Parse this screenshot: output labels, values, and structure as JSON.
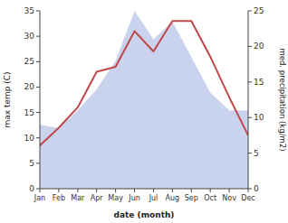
{
  "chart_data": {
    "type": "line",
    "xlabel": "date (month)",
    "ylabel": "max temp (C)",
    "y2label": "med. precipitation (kg/m2)",
    "categories": [
      "Jan",
      "Feb",
      "Mar",
      "Apr",
      "May",
      "Jun",
      "Jul",
      "Aug",
      "Sep",
      "Oct",
      "Nov",
      "Dec"
    ],
    "series": [
      {
        "type": "area",
        "axis": "y2",
        "color": "#b8c4e8",
        "values": [
          9,
          8.5,
          11,
          14,
          18,
          25,
          21,
          23.5,
          18.5,
          13.5,
          11,
          11
        ]
      },
      {
        "type": "line",
        "color": "#c0484a",
        "values": [
          8.5,
          12,
          16,
          23,
          24,
          31,
          27,
          33,
          33,
          26,
          18,
          10.5
        ]
      }
    ],
    "ylim": [
      0,
      35
    ],
    "yticks": [
      0,
      5,
      10,
      15,
      20,
      25,
      30,
      35
    ],
    "y2lim": [
      0,
      25
    ],
    "y2ticks": [
      0,
      5,
      10,
      15,
      20,
      25
    ]
  }
}
